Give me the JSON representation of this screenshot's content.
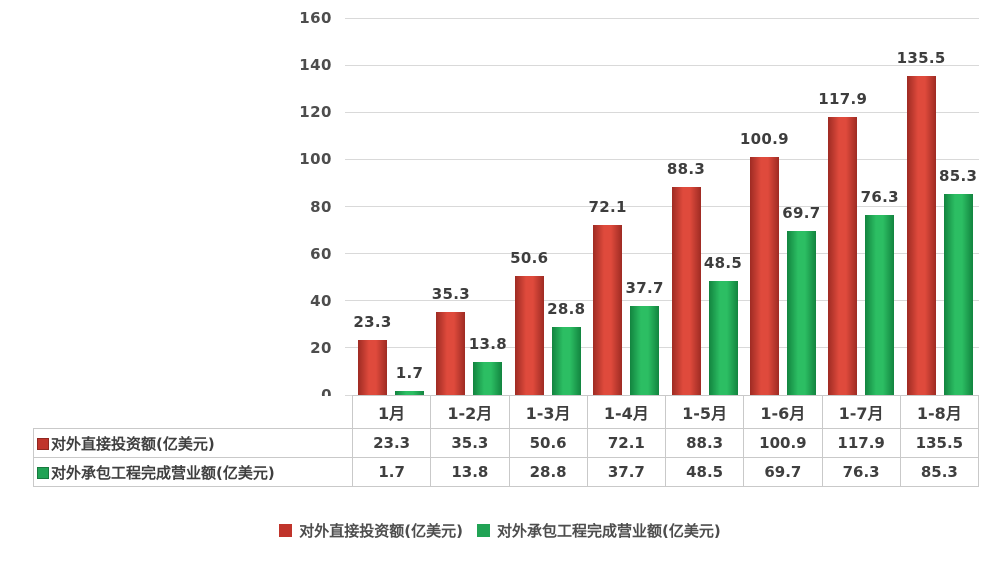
{
  "chart_data": {
    "type": "bar",
    "title": "",
    "xlabel": "",
    "ylabel": "",
    "categories": [
      "1月",
      "1-2月",
      "1-3月",
      "1-4月",
      "1-5月",
      "1-6月",
      "1-7月",
      "1-8月"
    ],
    "series": [
      {
        "name": "对外直接投资额(亿美元)",
        "values": [
          23.3,
          35.3,
          50.6,
          72.1,
          88.3,
          100.9,
          117.9,
          135.5
        ],
        "color_main": "#df4a3c",
        "color_edge": "#9e2b23",
        "marker_color": "#c0342b"
      },
      {
        "name": "对外承包工程完成营业额(亿美元)",
        "values": [
          1.7,
          13.8,
          28.8,
          37.7,
          48.5,
          69.7,
          76.3,
          85.3
        ],
        "color_main": "#2cbe63",
        "color_edge": "#12843f",
        "marker_color": "#21a355"
      }
    ],
    "ylim": [
      0,
      160
    ],
    "ytick_step": 20,
    "yticks": [
      "0",
      "20",
      "40",
      "60",
      "80",
      "100",
      "120",
      "140",
      "160"
    ],
    "grid": true,
    "grid_color": "#d9d9d9",
    "data_labels": true,
    "legend_position": "bottom",
    "data_table_shown": true
  }
}
